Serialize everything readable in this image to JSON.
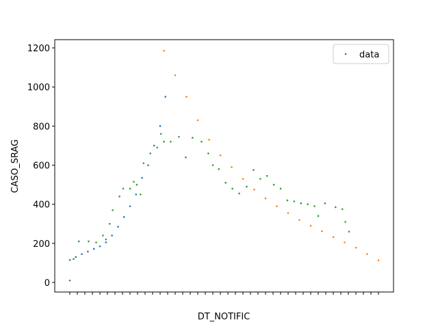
{
  "chart_data": {
    "type": "scatter",
    "xlabel": "DT_NOTIFIC",
    "ylabel": "CASO_SRAG",
    "xlim": [
      -20,
      430
    ],
    "ylim": [
      -49,
      1242
    ],
    "yticks": [
      0,
      200,
      400,
      600,
      800,
      1000,
      1200
    ],
    "xticks": [
      0,
      10,
      20,
      30,
      40,
      50,
      60,
      70,
      80,
      90,
      100,
      110,
      120,
      130,
      140,
      150,
      160,
      170,
      180,
      190,
      200,
      210,
      220,
      230,
      240,
      250,
      260,
      270,
      280,
      290,
      300,
      310,
      320,
      330,
      340,
      350,
      360,
      370,
      380,
      390,
      400,
      410
    ],
    "legend": "upper right",
    "series": [
      {
        "name": "data",
        "color": "#1f77b4",
        "x": [
          0,
          8,
          16,
          24,
          32,
          40,
          48,
          56,
          64,
          72,
          80,
          88,
          96,
          104,
          112,
          120,
          127
        ],
        "values": [
          115,
          130,
          145,
          158,
          172,
          185,
          205,
          240,
          285,
          335,
          390,
          450,
          535,
          600,
          700,
          800,
          950
        ]
      },
      {
        "color": "#ff7f0e",
        "x": [
          125,
          140,
          155,
          170,
          185,
          200,
          215,
          230,
          245,
          260,
          275,
          290,
          305,
          320,
          335,
          350,
          365,
          380,
          395,
          410
        ],
        "values": [
          1185,
          1060,
          950,
          830,
          730,
          650,
          590,
          530,
          475,
          430,
          390,
          355,
          320,
          290,
          262,
          232,
          205,
          178,
          145,
          113
        ]
      },
      {
        "color": "#2ca02c",
        "x": [
          0,
          5,
          12,
          25,
          35,
          44,
          48,
          53,
          57,
          66,
          71,
          80,
          85,
          89,
          94,
          98,
          107,
          116,
          121,
          125,
          134,
          145,
          154,
          163,
          175,
          184,
          190,
          198,
          207,
          216,
          225,
          235,
          244,
          253,
          262,
          271,
          280,
          289,
          298,
          307,
          316,
          325,
          330,
          339,
          353,
          362,
          366,
          371
        ],
        "values": [
          10,
          120,
          210,
          210,
          205,
          240,
          220,
          300,
          370,
          440,
          480,
          480,
          515,
          500,
          450,
          610,
          660,
          690,
          760,
          720,
          720,
          745,
          640,
          740,
          720,
          660,
          600,
          580,
          510,
          480,
          455,
          490,
          575,
          530,
          545,
          500,
          480,
          420,
          415,
          405,
          400,
          390,
          340,
          405,
          385,
          375,
          310,
          260
        ]
      }
    ]
  }
}
